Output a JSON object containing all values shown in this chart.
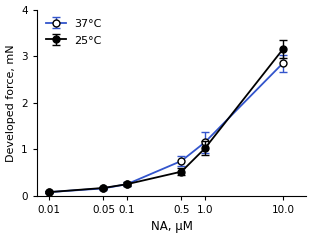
{
  "x_positions": [
    0.01,
    0.05,
    0.1,
    0.5,
    1.0,
    10.0
  ],
  "x_labels": [
    "0.01",
    "0.05",
    "0.1",
    "0.5",
    "1.0",
    "10.0"
  ],
  "series_37": {
    "y": [
      0.08,
      0.16,
      0.25,
      0.75,
      1.15,
      2.85
    ],
    "yerr": [
      0.02,
      0.03,
      0.04,
      0.1,
      0.22,
      0.18
    ],
    "color": "#3355cc",
    "marker": "o",
    "markerfacecolor": "white",
    "markeredgecolor": "black",
    "label": "37°C"
  },
  "series_25": {
    "y": [
      0.08,
      0.17,
      0.25,
      0.52,
      1.02,
      3.15
    ],
    "yerr": [
      0.02,
      0.03,
      0.04,
      0.07,
      0.15,
      0.2
    ],
    "color": "black",
    "marker": "o",
    "markerfacecolor": "black",
    "markeredgecolor": "black",
    "label": "25°C"
  },
  "xlabel": "NA, μM",
  "ylabel": "Developed force, mN",
  "ylim": [
    0,
    4
  ],
  "yticks": [
    0,
    1,
    2,
    3,
    4
  ],
  "background_color": "white"
}
